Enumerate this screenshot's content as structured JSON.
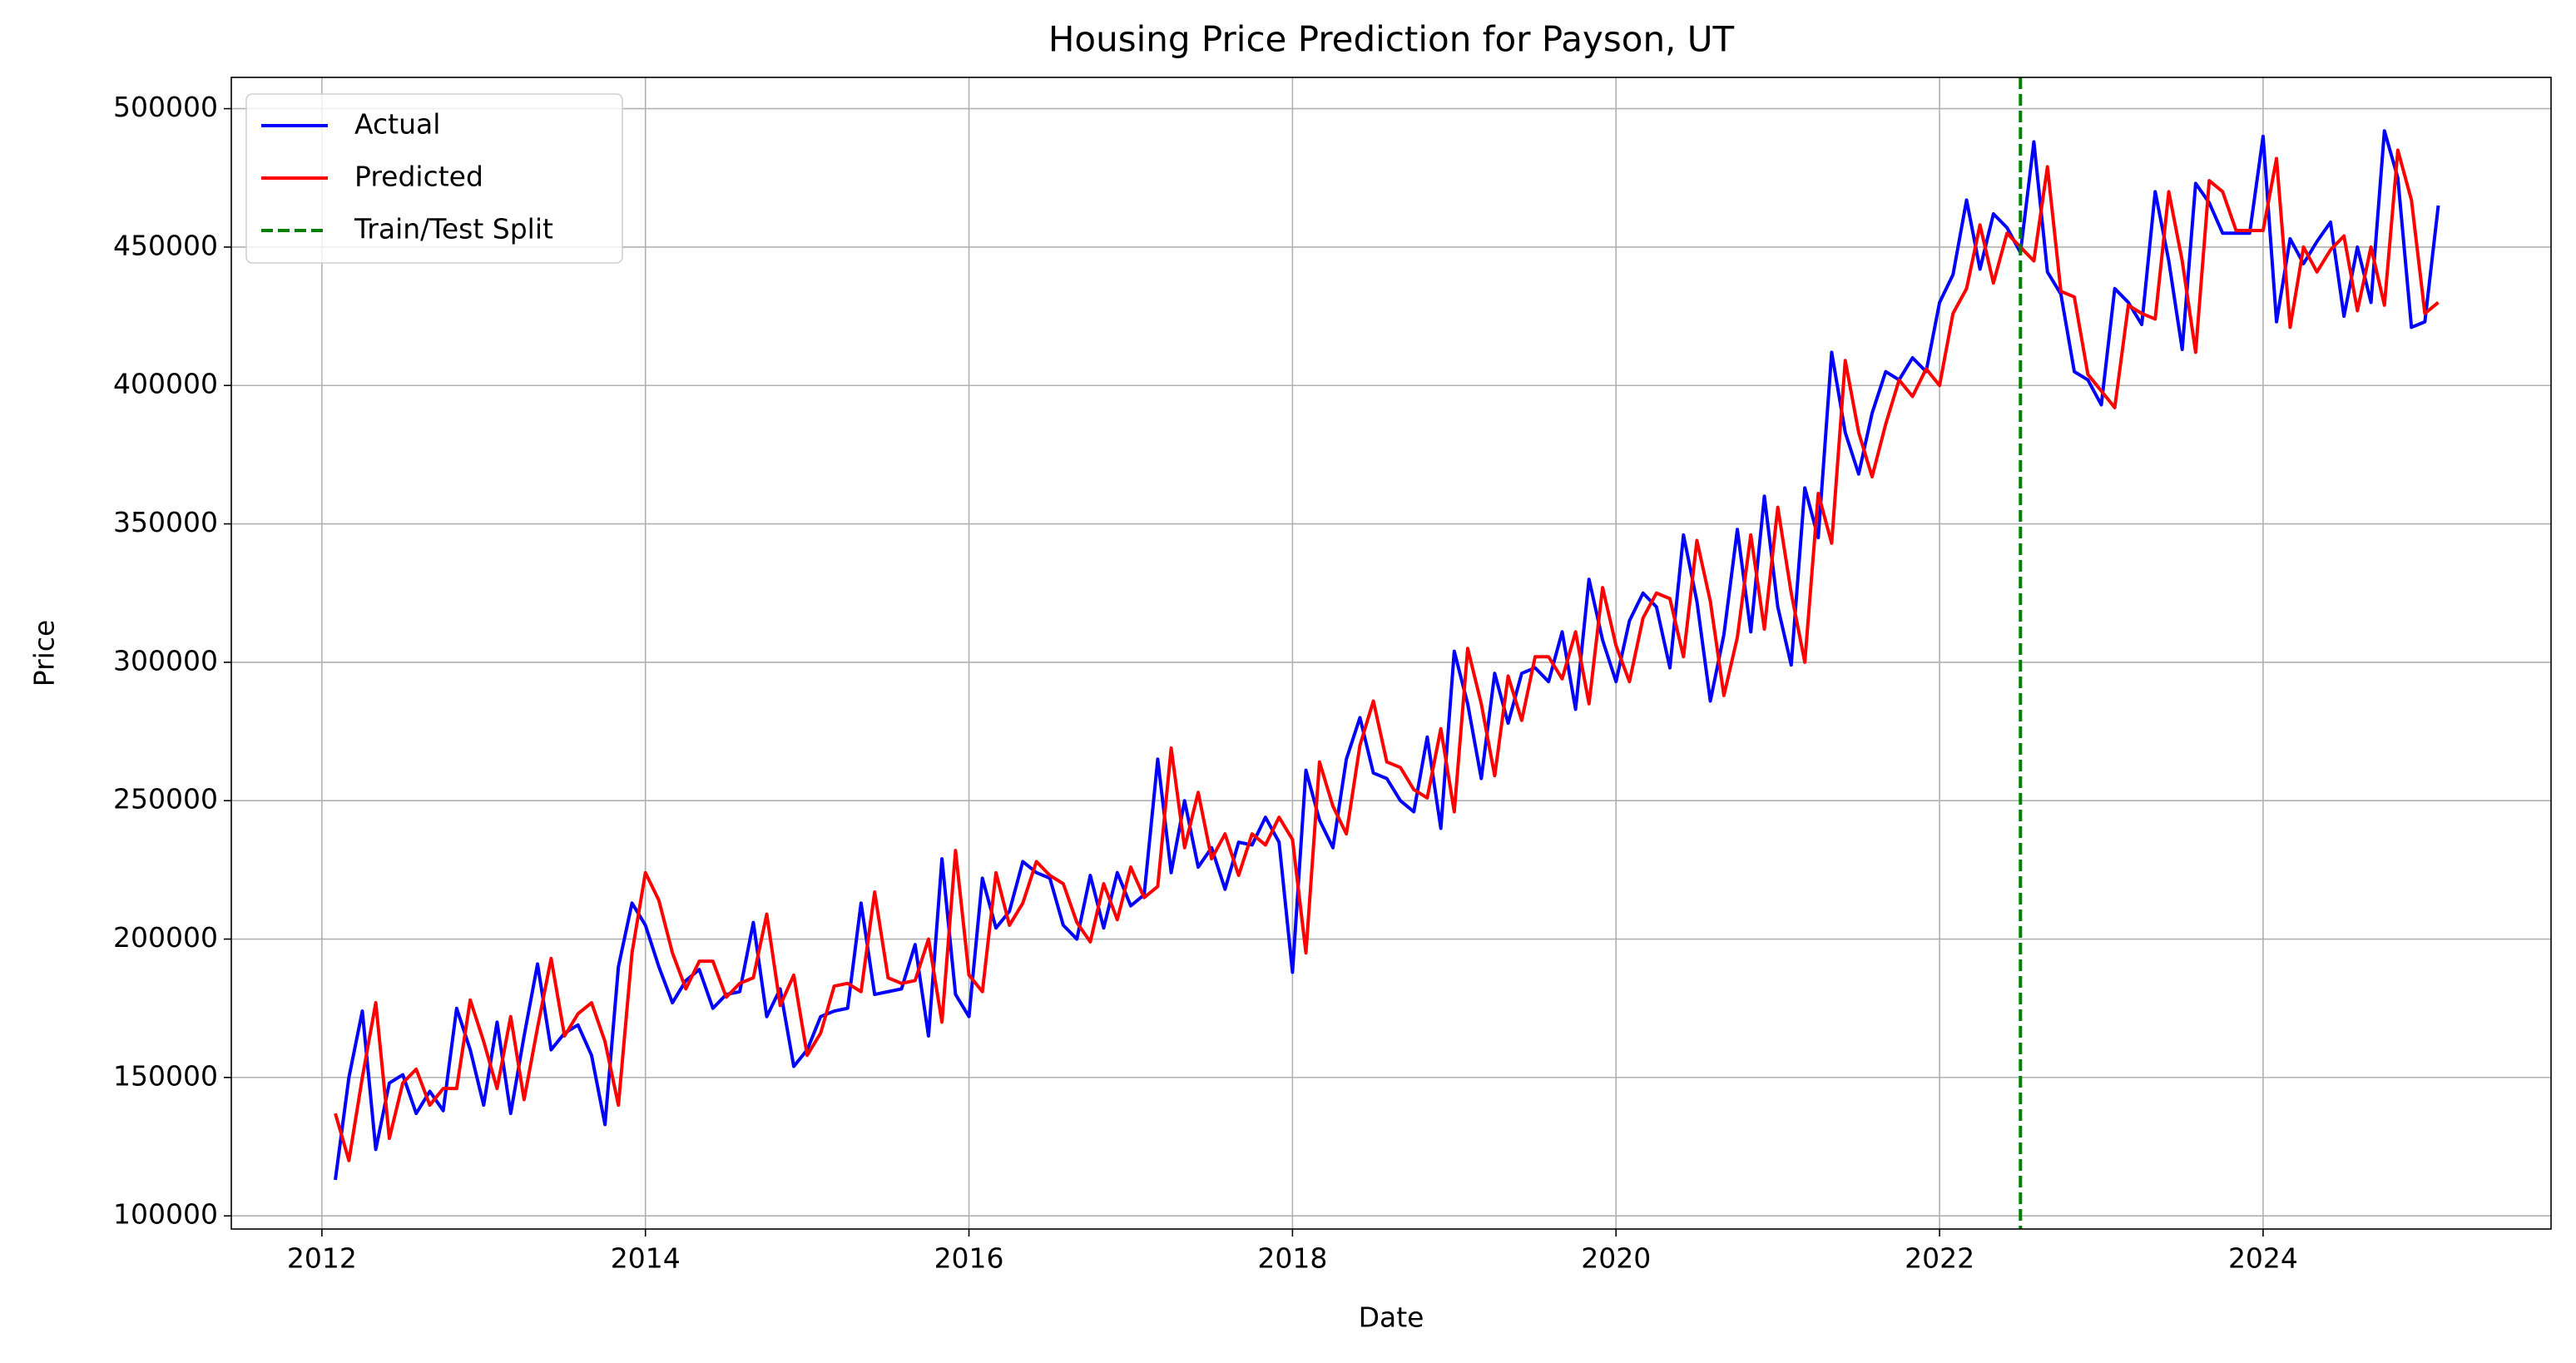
{
  "chart_data": {
    "type": "line",
    "title": "Housing Price Prediction for Payson, UT",
    "xlabel": "Date",
    "ylabel": "Price",
    "x": [
      2012.083,
      2012.167,
      2012.25,
      2012.333,
      2012.417,
      2012.5,
      2012.583,
      2012.667,
      2012.75,
      2012.833,
      2012.917,
      2013,
      2013.083,
      2013.167,
      2013.25,
      2013.333,
      2013.417,
      2013.5,
      2013.583,
      2013.667,
      2013.75,
      2013.833,
      2013.917,
      2014,
      2014.083,
      2014.167,
      2014.25,
      2014.333,
      2014.417,
      2014.5,
      2014.583,
      2014.667,
      2014.75,
      2014.833,
      2014.917,
      2015,
      2015.083,
      2015.167,
      2015.25,
      2015.333,
      2015.417,
      2015.5,
      2015.583,
      2015.667,
      2015.75,
      2015.833,
      2015.917,
      2016,
      2016.083,
      2016.167,
      2016.25,
      2016.333,
      2016.417,
      2016.5,
      2016.583,
      2016.667,
      2016.75,
      2016.833,
      2016.917,
      2017,
      2017.083,
      2017.167,
      2017.25,
      2017.333,
      2017.417,
      2017.5,
      2017.583,
      2017.667,
      2017.75,
      2017.833,
      2017.917,
      2018,
      2018.083,
      2018.167,
      2018.25,
      2018.333,
      2018.417,
      2018.5,
      2018.583,
      2018.667,
      2018.75,
      2018.833,
      2018.917,
      2019,
      2019.083,
      2019.167,
      2019.25,
      2019.333,
      2019.417,
      2019.5,
      2019.583,
      2019.667,
      2019.75,
      2019.833,
      2019.917,
      2020,
      2020.083,
      2020.167,
      2020.25,
      2020.333,
      2020.417,
      2020.5,
      2020.583,
      2020.667,
      2020.75,
      2020.833,
      2020.917,
      2021,
      2021.083,
      2021.167,
      2021.25,
      2021.333,
      2021.417,
      2021.5,
      2021.583,
      2021.667,
      2021.75,
      2021.833,
      2021.917,
      2022,
      2022.083,
      2022.167,
      2022.25,
      2022.333,
      2022.417,
      2022.5,
      2022.583,
      2022.667,
      2022.75,
      2022.833,
      2022.917,
      2023,
      2023.083,
      2023.167,
      2023.25,
      2023.333,
      2023.417,
      2023.5,
      2023.583,
      2023.667,
      2023.75,
      2023.833,
      2023.917,
      2024,
      2024.083,
      2024.167,
      2024.25,
      2024.333,
      2024.417,
      2024.5,
      2024.583,
      2024.667,
      2024.75,
      2024.833,
      2024.917,
      2025,
      2025.083
    ],
    "series": [
      {
        "name": "Actual",
        "color": "#0000ff",
        "values": [
          113000,
          150000,
          174000,
          124000,
          148000,
          151000,
          137000,
          145000,
          138000,
          175000,
          160000,
          140000,
          170000,
          137000,
          165000,
          191000,
          160000,
          166000,
          169000,
          158000,
          133000,
          190000,
          213000,
          205000,
          190000,
          177000,
          185000,
          189000,
          175000,
          180000,
          181000,
          206000,
          172000,
          182000,
          154000,
          160000,
          172000,
          174000,
          175000,
          213000,
          180000,
          181000,
          182000,
          198000,
          165000,
          229000,
          180000,
          172000,
          222000,
          204000,
          210000,
          228000,
          224000,
          222000,
          205000,
          200000,
          223000,
          204000,
          224000,
          212000,
          216000,
          265000,
          224000,
          250000,
          226000,
          233000,
          218000,
          235000,
          234000,
          244000,
          235000,
          188000,
          261000,
          243000,
          233000,
          265000,
          280000,
          260000,
          258000,
          250000,
          246000,
          273000,
          240000,
          304000,
          285000,
          258000,
          296000,
          278000,
          296000,
          298000,
          293000,
          311000,
          283000,
          330000,
          308000,
          293000,
          315000,
          325000,
          320000,
          298000,
          346000,
          322000,
          286000,
          310000,
          348000,
          311000,
          360000,
          320000,
          299000,
          363000,
          345000,
          412000,
          383000,
          368000,
          390000,
          405000,
          402000,
          410000,
          405000,
          430000,
          440000,
          467000,
          442000,
          462000,
          457000,
          448000,
          488000,
          441000,
          433000,
          405000,
          402000,
          393000,
          435000,
          430000,
          422000,
          470000,
          445000,
          413000,
          473000,
          466000,
          455000,
          455000,
          455000,
          490000,
          423000,
          453000,
          444000,
          452000,
          459000,
          425000,
          450000,
          430000,
          492000,
          475000,
          421000,
          423000,
          465000
        ]
      },
      {
        "name": "Predicted",
        "color": "#ff0000",
        "values": [
          137000,
          120000,
          150000,
          177000,
          128000,
          148000,
          153000,
          140000,
          146000,
          146000,
          178000,
          163000,
          146000,
          172000,
          142000,
          168000,
          193000,
          165000,
          173000,
          177000,
          163000,
          140000,
          195000,
          224000,
          214000,
          195000,
          182000,
          192000,
          192000,
          179000,
          184000,
          186000,
          209000,
          176000,
          187000,
          158000,
          166000,
          183000,
          184000,
          181000,
          217000,
          186000,
          184000,
          185000,
          200000,
          170000,
          232000,
          187000,
          181000,
          224000,
          205000,
          213000,
          228000,
          223000,
          220000,
          206000,
          199000,
          220000,
          207000,
          226000,
          215000,
          219000,
          269000,
          233000,
          253000,
          229000,
          238000,
          223000,
          238000,
          234000,
          244000,
          236000,
          195000,
          264000,
          248000,
          238000,
          270000,
          286000,
          264000,
          262000,
          254000,
          251000,
          276000,
          246000,
          305000,
          285000,
          259000,
          295000,
          279000,
          302000,
          302000,
          294000,
          311000,
          285000,
          327000,
          306000,
          293000,
          316000,
          325000,
          323000,
          302000,
          344000,
          322000,
          288000,
          309000,
          346000,
          312000,
          356000,
          325000,
          300000,
          361000,
          343000,
          409000,
          383000,
          367000,
          386000,
          402000,
          396000,
          406000,
          400000,
          426000,
          435000,
          458000,
          437000,
          455000,
          450000,
          445000,
          479000,
          434000,
          432000,
          404000,
          398000,
          392000,
          429000,
          426000,
          424000,
          470000,
          445000,
          412000,
          474000,
          470000,
          456000,
          456000,
          456000,
          482000,
          421000,
          450000,
          441000,
          449000,
          454000,
          427000,
          450000,
          429000,
          485000,
          467000,
          426000,
          430000
        ]
      }
    ],
    "vlines": [
      {
        "name": "Train/Test Split",
        "x": 2022.5,
        "color": "#008000",
        "dashed": true
      }
    ],
    "xlim": [
      2011.44,
      2025.78
    ],
    "ylim": [
      95250,
      511300
    ],
    "xticks": [
      2012,
      2014,
      2016,
      2018,
      2020,
      2022,
      2024
    ],
    "yticks": [
      100000,
      150000,
      200000,
      250000,
      300000,
      350000,
      400000,
      450000,
      500000
    ],
    "grid": true,
    "legend": "upper left"
  }
}
